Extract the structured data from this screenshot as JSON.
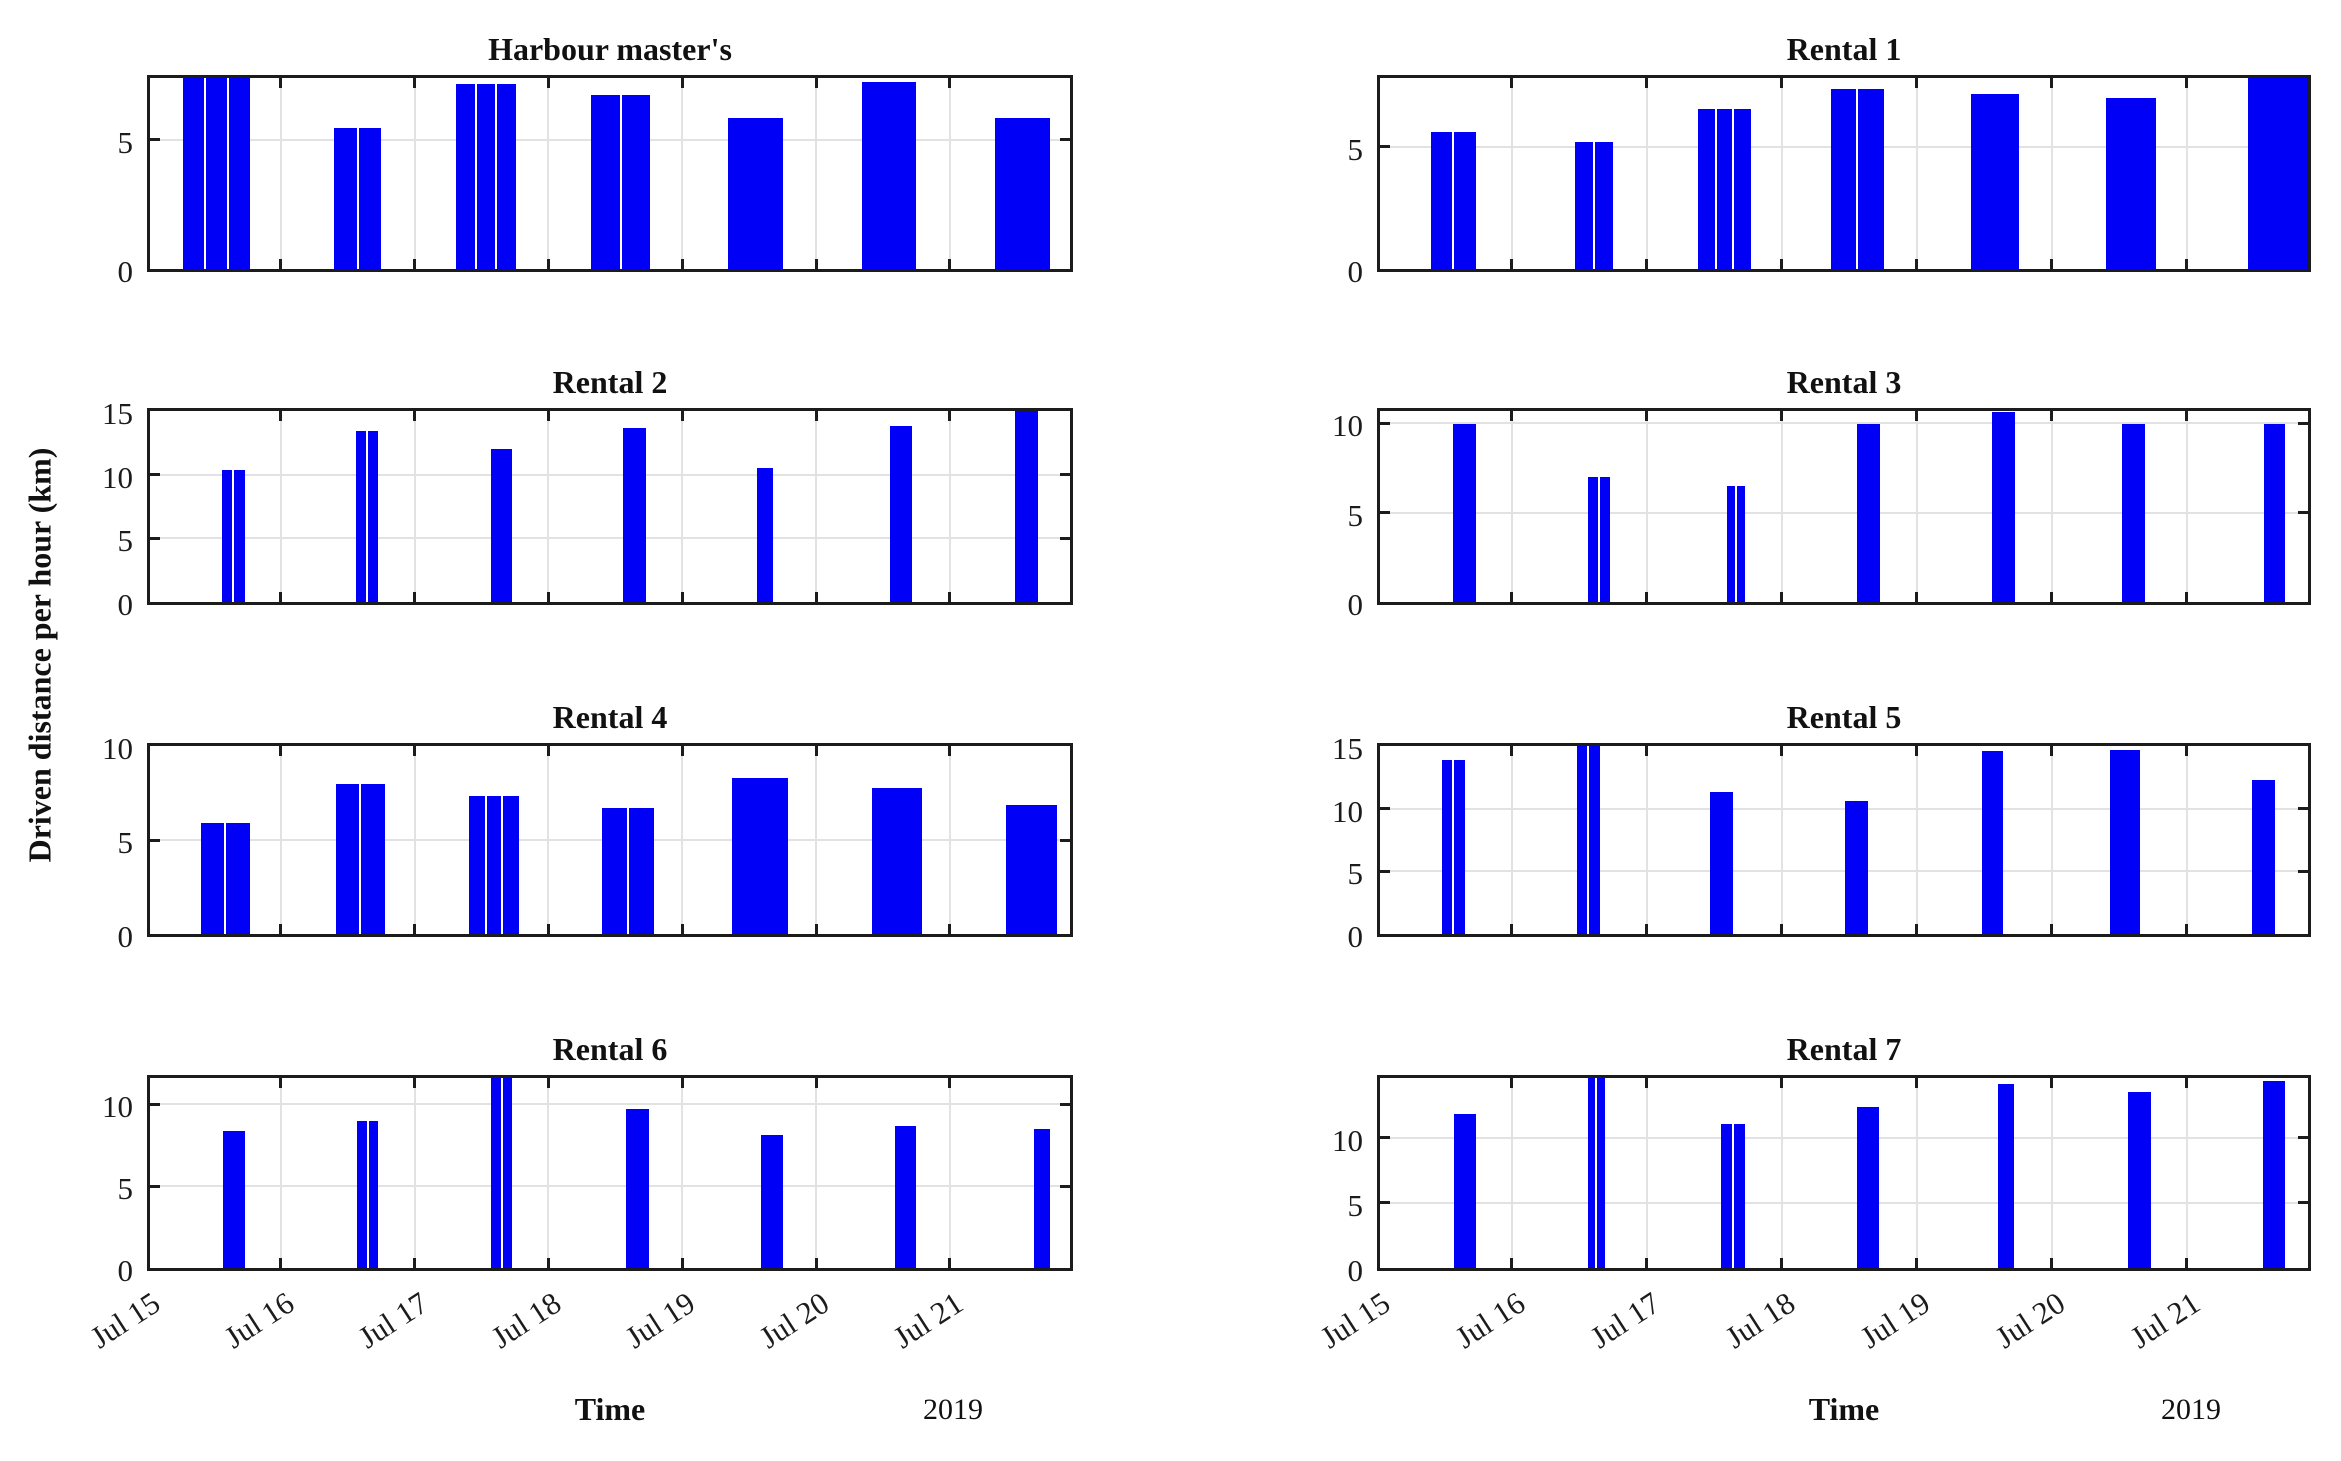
{
  "figure": {
    "ylabel": "Driven distance per hour (km)",
    "xlabel": "Time",
    "year_label": "2019",
    "x_tick_labels": [
      "Jul 15",
      "Jul 16",
      "Jul 17",
      "Jul 18",
      "Jul 19",
      "Jul 20",
      "Jul 21"
    ],
    "bar_color": "#0000f7",
    "grid_color": "#e2e2e2",
    "frame_color": "#1c1c1c",
    "background": "#ffffff",
    "x_span_days": 6.92
  },
  "chart_data": [
    {
      "type": "bar",
      "title": "Harbour master's",
      "row": 0,
      "col": 0,
      "ylabel": "Driven distance per hour (km)",
      "yticks": [
        0,
        5
      ],
      "ylim": [
        0,
        7.4
      ],
      "grid": true,
      "x_unit": "day (Jul 2019, 15th-21st)",
      "bars": [
        {
          "day": 0,
          "start": 0.27,
          "width": 0.5,
          "segments": 3,
          "value": 7.4,
          "clipped": true
        },
        {
          "day": 1,
          "start": 0.4,
          "width": 0.35,
          "segments": 2,
          "value": 5.45
        },
        {
          "day": 2,
          "start": 0.31,
          "width": 0.45,
          "segments": 3,
          "value": 7.15
        },
        {
          "day": 3,
          "start": 0.32,
          "width": 0.44,
          "segments": 2,
          "value": 6.75
        },
        {
          "day": 4,
          "start": 0.34,
          "width": 0.41,
          "segments": 1,
          "value": 5.85
        },
        {
          "day": 5,
          "start": 0.34,
          "width": 0.41,
          "segments": 1,
          "value": 7.25
        },
        {
          "day": 6,
          "start": 0.34,
          "width": 0.41,
          "segments": 1,
          "value": 5.85
        }
      ]
    },
    {
      "type": "bar",
      "title": "Rental 1",
      "row": 0,
      "col": 1,
      "yticks": [
        0,
        5
      ],
      "ylim": [
        0,
        7.8
      ],
      "grid": true,
      "bars": [
        {
          "day": 0,
          "start": 0.4,
          "width": 0.33,
          "segments": 2,
          "value": 5.6
        },
        {
          "day": 1,
          "start": 0.47,
          "width": 0.28,
          "segments": 2,
          "value": 5.2
        },
        {
          "day": 2,
          "start": 0.38,
          "width": 0.39,
          "segments": 3,
          "value": 6.55
        },
        {
          "day": 3,
          "start": 0.36,
          "width": 0.4,
          "segments": 2,
          "value": 7.35
        },
        {
          "day": 4,
          "start": 0.4,
          "width": 0.36,
          "segments": 1,
          "value": 7.15
        },
        {
          "day": 5,
          "start": 0.4,
          "width": 0.37,
          "segments": 1,
          "value": 7.0
        },
        {
          "day": 6,
          "start": 0.45,
          "width": 0.47,
          "segments": 1,
          "value": 7.8,
          "clipped": true
        }
      ]
    },
    {
      "type": "bar",
      "title": "Rental 2",
      "row": 1,
      "col": 0,
      "yticks": [
        0,
        5,
        10,
        15
      ],
      "ylim": [
        0,
        15
      ],
      "grid": true,
      "bars": [
        {
          "day": 0,
          "start": 0.56,
          "width": 0.17,
          "segments": 2,
          "value": 10.4
        },
        {
          "day": 1,
          "start": 0.56,
          "width": 0.17,
          "segments": 2,
          "value": 13.4
        },
        {
          "day": 2,
          "start": 0.57,
          "width": 0.16,
          "segments": 1,
          "value": 12.0
        },
        {
          "day": 3,
          "start": 0.56,
          "width": 0.17,
          "segments": 1,
          "value": 13.7
        },
        {
          "day": 4,
          "start": 0.56,
          "width": 0.12,
          "segments": 1,
          "value": 10.5
        },
        {
          "day": 5,
          "start": 0.55,
          "width": 0.17,
          "segments": 1,
          "value": 13.8
        },
        {
          "day": 6,
          "start": 0.49,
          "width": 0.17,
          "segments": 1,
          "value": 15.0,
          "clipped": true
        }
      ]
    },
    {
      "type": "bar",
      "title": "Rental 3",
      "row": 1,
      "col": 1,
      "yticks": [
        0,
        5,
        10
      ],
      "ylim": [
        0,
        10.7
      ],
      "grid": true,
      "bars": [
        {
          "day": 0,
          "start": 0.56,
          "width": 0.17,
          "segments": 1,
          "value": 10.0
        },
        {
          "day": 1,
          "start": 0.56,
          "width": 0.17,
          "segments": 2,
          "value": 7.0
        },
        {
          "day": 2,
          "start": 0.59,
          "width": 0.14,
          "segments": 2,
          "value": 6.5
        },
        {
          "day": 3,
          "start": 0.56,
          "width": 0.17,
          "segments": 1,
          "value": 10.0
        },
        {
          "day": 4,
          "start": 0.56,
          "width": 0.17,
          "segments": 1,
          "value": 10.65,
          "clipped": true
        },
        {
          "day": 5,
          "start": 0.52,
          "width": 0.17,
          "segments": 1,
          "value": 10.0
        },
        {
          "day": 6,
          "start": 0.57,
          "width": 0.16,
          "segments": 1,
          "value": 10.0
        }
      ]
    },
    {
      "type": "bar",
      "title": "Rental 4",
      "row": 2,
      "col": 0,
      "yticks": [
        0,
        5,
        10
      ],
      "ylim": [
        0,
        10
      ],
      "grid": true,
      "bars": [
        {
          "day": 0,
          "start": 0.4,
          "width": 0.37,
          "segments": 2,
          "value": 5.9
        },
        {
          "day": 1,
          "start": 0.41,
          "width": 0.37,
          "segments": 2,
          "value": 8.0
        },
        {
          "day": 2,
          "start": 0.41,
          "width": 0.37,
          "segments": 3,
          "value": 7.35
        },
        {
          "day": 3,
          "start": 0.4,
          "width": 0.39,
          "segments": 2,
          "value": 6.7
        },
        {
          "day": 4,
          "start": 0.37,
          "width": 0.42,
          "segments": 1,
          "value": 8.3
        },
        {
          "day": 5,
          "start": 0.42,
          "width": 0.37,
          "segments": 1,
          "value": 7.75
        },
        {
          "day": 6,
          "start": 0.42,
          "width": 0.38,
          "segments": 1,
          "value": 6.85
        }
      ]
    },
    {
      "type": "bar",
      "title": "Rental 5",
      "row": 2,
      "col": 1,
      "yticks": [
        0,
        5,
        10,
        15
      ],
      "ylim": [
        0,
        15
      ],
      "grid": true,
      "bars": [
        {
          "day": 0,
          "start": 0.48,
          "width": 0.17,
          "segments": 2,
          "value": 13.9
        },
        {
          "day": 1,
          "start": 0.48,
          "width": 0.17,
          "segments": 2,
          "value": 15.0,
          "clipped": true
        },
        {
          "day": 2,
          "start": 0.47,
          "width": 0.17,
          "segments": 1,
          "value": 11.3
        },
        {
          "day": 3,
          "start": 0.47,
          "width": 0.17,
          "segments": 1,
          "value": 10.6
        },
        {
          "day": 4,
          "start": 0.48,
          "width": 0.16,
          "segments": 1,
          "value": 14.6
        },
        {
          "day": 5,
          "start": 0.43,
          "width": 0.22,
          "segments": 1,
          "value": 14.7
        },
        {
          "day": 6,
          "start": 0.48,
          "width": 0.17,
          "segments": 1,
          "value": 12.3
        }
      ]
    },
    {
      "type": "bar",
      "title": "Rental 6",
      "row": 3,
      "col": 0,
      "yticks": [
        0,
        5,
        10
      ],
      "ylim": [
        0,
        11.6
      ],
      "grid": true,
      "bars": [
        {
          "day": 0,
          "start": 0.57,
          "width": 0.16,
          "segments": 1,
          "value": 8.35
        },
        {
          "day": 1,
          "start": 0.57,
          "width": 0.16,
          "segments": 2,
          "value": 9.0
        },
        {
          "day": 2,
          "start": 0.57,
          "width": 0.16,
          "segments": 2,
          "value": 11.6,
          "clipped": true
        },
        {
          "day": 3,
          "start": 0.58,
          "width": 0.17,
          "segments": 1,
          "value": 9.7
        },
        {
          "day": 4,
          "start": 0.59,
          "width": 0.16,
          "segments": 1,
          "value": 8.1
        },
        {
          "day": 5,
          "start": 0.59,
          "width": 0.16,
          "segments": 1,
          "value": 8.7
        },
        {
          "day": 6,
          "start": 0.63,
          "width": 0.12,
          "segments": 1,
          "value": 8.5
        }
      ]
    },
    {
      "type": "bar",
      "title": "Rental 7",
      "row": 3,
      "col": 1,
      "yticks": [
        0,
        5,
        10
      ],
      "ylim": [
        0,
        14.6
      ],
      "grid": true,
      "bars": [
        {
          "day": 0,
          "start": 0.57,
          "width": 0.16,
          "segments": 1,
          "value": 11.8
        },
        {
          "day": 1,
          "start": 0.56,
          "width": 0.13,
          "segments": 2,
          "value": 14.6,
          "clipped": true
        },
        {
          "day": 2,
          "start": 0.55,
          "width": 0.18,
          "segments": 2,
          "value": 11.1
        },
        {
          "day": 3,
          "start": 0.56,
          "width": 0.16,
          "segments": 1,
          "value": 12.4
        },
        {
          "day": 4,
          "start": 0.6,
          "width": 0.12,
          "segments": 1,
          "value": 14.15
        },
        {
          "day": 5,
          "start": 0.565,
          "width": 0.17,
          "segments": 1,
          "value": 13.55
        },
        {
          "day": 6,
          "start": 0.565,
          "width": 0.16,
          "segments": 1,
          "value": 14.4
        }
      ]
    }
  ]
}
